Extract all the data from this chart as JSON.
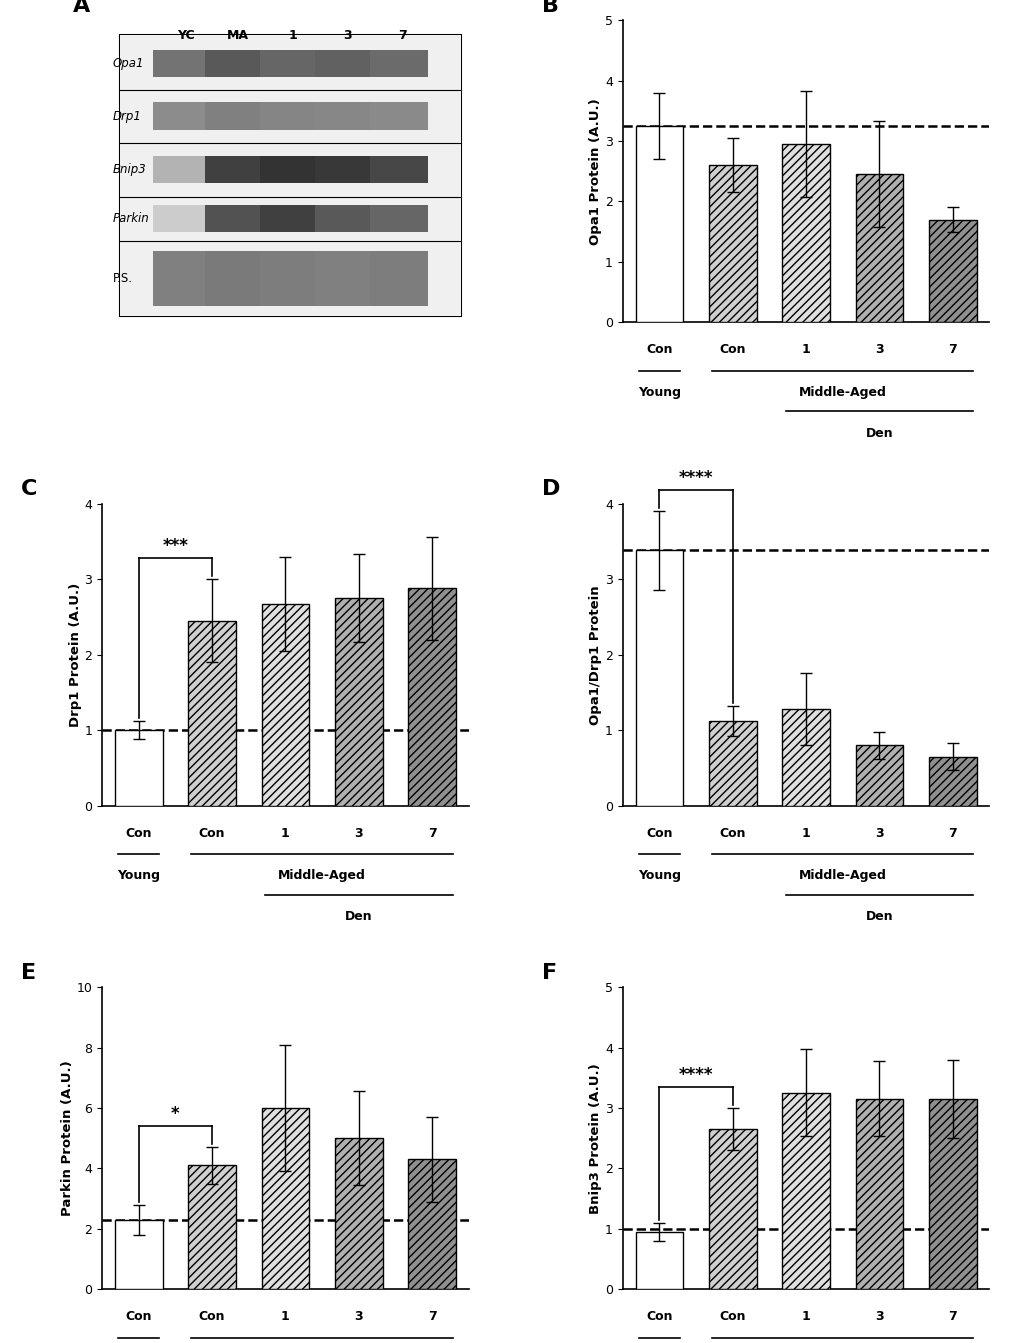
{
  "panel_B": {
    "title": "B",
    "ylabel": "Opa1 Protein (A.U.)",
    "ylim": [
      0,
      5
    ],
    "yticks": [
      0,
      1,
      2,
      3,
      4,
      5
    ],
    "dashed_line": 3.25,
    "bars": [
      3.25,
      2.6,
      2.95,
      2.45,
      1.7
    ],
    "errors": [
      0.55,
      0.45,
      0.88,
      0.88,
      0.2
    ],
    "significance": null,
    "sig_text": null
  },
  "panel_C": {
    "title": "C",
    "ylabel": "Drp1 Protein (A.U.)",
    "ylim": [
      0,
      4
    ],
    "yticks": [
      0,
      1,
      2,
      3,
      4
    ],
    "dashed_line": 1.0,
    "bars": [
      1.0,
      2.45,
      2.67,
      2.75,
      2.88
    ],
    "errors": [
      0.12,
      0.55,
      0.62,
      0.58,
      0.68
    ],
    "significance": [
      0,
      1
    ],
    "sig_text": "***"
  },
  "panel_D": {
    "title": "D",
    "ylabel": "Opa1/Drp1 Protein",
    "ylim": [
      0,
      4
    ],
    "yticks": [
      0,
      1,
      2,
      3,
      4
    ],
    "dashed_line": 3.38,
    "bars": [
      3.38,
      1.12,
      1.28,
      0.8,
      0.65
    ],
    "errors": [
      0.52,
      0.2,
      0.48,
      0.18,
      0.18
    ],
    "significance": [
      0,
      1
    ],
    "sig_text": "****"
  },
  "panel_E": {
    "title": "E",
    "ylabel": "Parkin Protein (A.U.)",
    "ylim": [
      0,
      10
    ],
    "yticks": [
      0,
      2,
      4,
      6,
      8,
      10
    ],
    "dashed_line": 2.3,
    "bars": [
      2.3,
      4.1,
      6.0,
      5.0,
      4.3
    ],
    "errors": [
      0.5,
      0.6,
      2.1,
      1.55,
      1.4
    ],
    "significance": [
      0,
      1
    ],
    "sig_text": "*"
  },
  "panel_F": {
    "title": "F",
    "ylabel": "Bnip3 Protein (A.U.)",
    "ylim": [
      0,
      5
    ],
    "yticks": [
      0,
      1,
      2,
      3,
      4,
      5
    ],
    "dashed_line": 1.0,
    "bars": [
      0.95,
      2.65,
      3.25,
      3.15,
      3.15
    ],
    "errors": [
      0.15,
      0.35,
      0.72,
      0.62,
      0.65
    ],
    "significance": [
      0,
      1
    ],
    "sig_text": "****"
  },
  "categories": [
    "Con",
    "Con",
    "1",
    "3",
    "7"
  ],
  "bar_facecolors": [
    "#ffffff",
    "#d0d0d0",
    "#e0e0e0",
    "#b0b0b0",
    "#909090"
  ],
  "hatch_patterns": [
    "",
    "////",
    "////",
    "////",
    "////"
  ],
  "western_blot_row_labels": [
    "Opa1",
    "Drp1",
    "Bnip3",
    "Parkin",
    "P.S."
  ],
  "western_blot_col_labels": [
    "YC",
    "MA",
    "1",
    "3",
    "7"
  ]
}
